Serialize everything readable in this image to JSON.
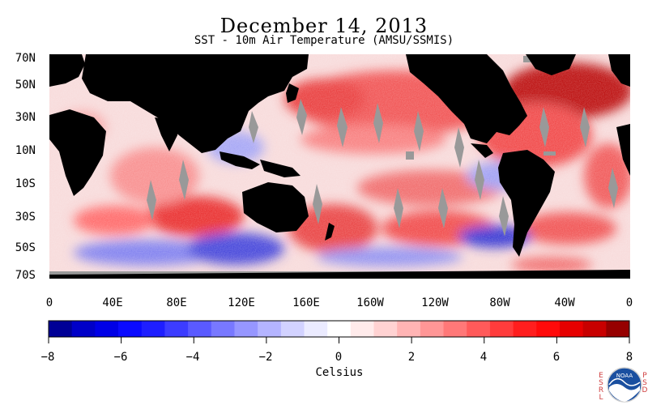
{
  "header": {
    "title": "December 14, 2013",
    "subtitle": "SST - 10m Air Temperature (AMSU/SSMIS)"
  },
  "map": {
    "latitude_labels": [
      "70N",
      "50N",
      "30N",
      "10N",
      "10S",
      "30S",
      "50S",
      "70S"
    ],
    "longitude_labels": [
      "0",
      "40E",
      "80E",
      "120E",
      "160E",
      "160W",
      "120W",
      "80W",
      "40W",
      "0"
    ],
    "colors": {
      "land": "#000000",
      "missing": "#999999",
      "neutral": "#ffffff"
    }
  },
  "colorbar": {
    "tick_labels": [
      "−8",
      "−6",
      "−4",
      "−2",
      "0",
      "2",
      "4",
      "6",
      "8"
    ],
    "unit_label": "Celsius",
    "min": -8,
    "max": 8,
    "colors": [
      "#000096",
      "#0000c8",
      "#0000e6",
      "#0a0aff",
      "#1e1eff",
      "#3c3cff",
      "#5a5aff",
      "#7878ff",
      "#9696ff",
      "#b4b4ff",
      "#d2d2ff",
      "#ebebff",
      "#ffffff",
      "#ffebeb",
      "#ffd2d2",
      "#ffb4b4",
      "#ff9696",
      "#ff7878",
      "#ff5a5a",
      "#ff3c3c",
      "#ff1e1e",
      "#ff0a0a",
      "#e60000",
      "#c80000",
      "#960000"
    ]
  },
  "logo": {
    "esrl_letters": [
      "E",
      "S",
      "R",
      "L"
    ],
    "psd_letters": [
      "P",
      "S",
      "D"
    ],
    "emblem_text": "NOAA"
  }
}
